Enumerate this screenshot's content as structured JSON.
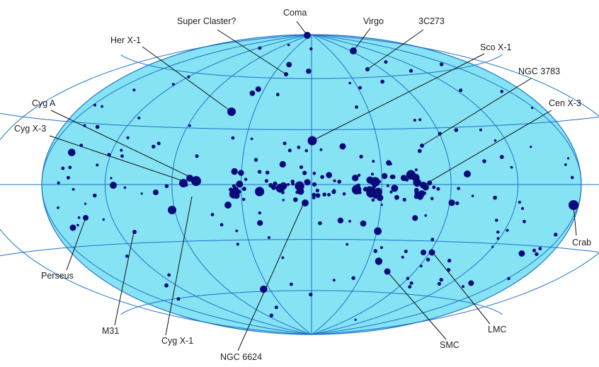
{
  "map": {
    "colors": {
      "ellipse_fill": "#86e3f4",
      "grid_line": "#1e72c8",
      "source": "#0b0a7a",
      "pointer_line": "#111111",
      "label_text": "#202020"
    },
    "labels": {
      "coma": "Coma",
      "super_claster": "Super Claster?",
      "virgo": "Virgo",
      "3c273": "3C273",
      "her_x1": "Her X-1",
      "sco_x1": "Sco X-1",
      "ngc3783": "NGC 3783",
      "cyg_a": "Cyg A",
      "cen_x3": "Cen X-3",
      "cyg_x3": "Cyg X-3",
      "crab": "Crab",
      "perseus": "Perseus",
      "m31": "M31",
      "cyg_x1": "Cyg X-1",
      "ngc6624": "NGC 6624",
      "smc": "SMC",
      "lmc": "LMC"
    }
  }
}
